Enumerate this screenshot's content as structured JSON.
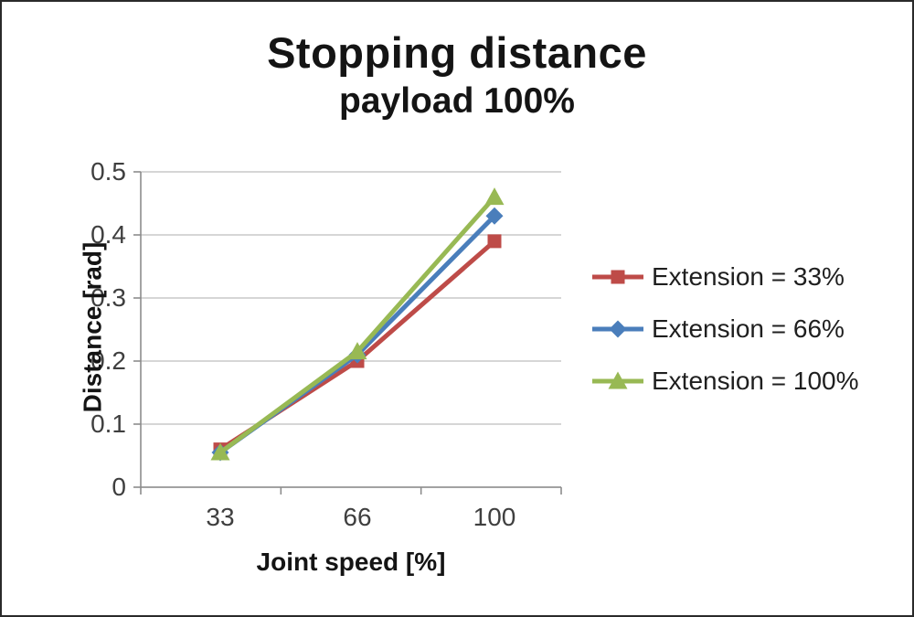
{
  "chart_data": {
    "type": "line",
    "title": "Stopping distance",
    "subtitle": "payload 100%",
    "xlabel": "Joint speed [%]",
    "ylabel": "Distance [rad]",
    "categories": [
      "33",
      "66",
      "100"
    ],
    "yticks": [
      0,
      0.1,
      0.2,
      0.3,
      0.4,
      0.5
    ],
    "ylim": [
      0,
      0.5
    ],
    "grid": true,
    "legend_position": "right",
    "series": [
      {
        "name": "Extension = 33%",
        "color": "#be4b48",
        "marker": "square",
        "values": [
          0.06,
          0.2,
          0.39
        ]
      },
      {
        "name": "Extension = 66%",
        "color": "#4a7ebb",
        "marker": "diamond",
        "values": [
          0.055,
          0.21,
          0.43
        ]
      },
      {
        "name": "Extension = 100%",
        "color": "#98b954",
        "marker": "triangle",
        "values": [
          0.055,
          0.215,
          0.46
        ]
      }
    ],
    "colors": {
      "gridline": "#c8c8c8",
      "axis": "#8c8c8c",
      "tick_text": "#3f3f3f"
    }
  }
}
